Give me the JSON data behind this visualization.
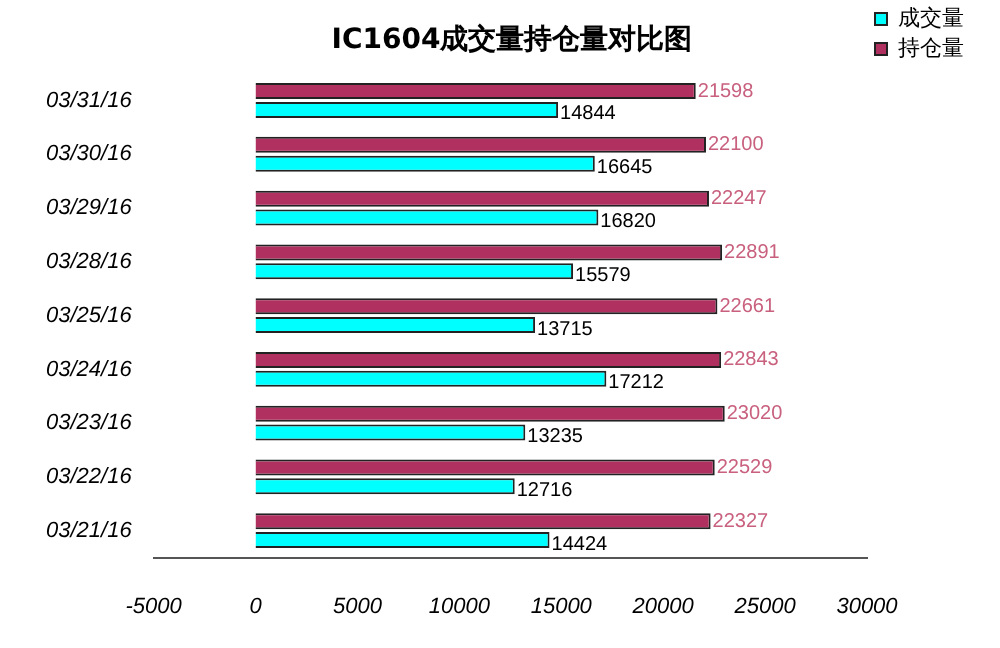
{
  "chart_data": {
    "type": "bar",
    "orientation": "horizontal",
    "title": "IC1604成交量持仓量对比图",
    "categories": [
      "03/31/16",
      "03/30/16",
      "03/29/16",
      "03/28/16",
      "03/25/16",
      "03/24/16",
      "03/23/16",
      "03/22/16",
      "03/21/16"
    ],
    "series": [
      {
        "name": "成交量",
        "color": "#00ffff",
        "values": [
          14844,
          16645,
          16820,
          15579,
          13715,
          17212,
          13235,
          12716,
          14424
        ]
      },
      {
        "name": "持仓量",
        "color": "#b03060",
        "values": [
          21598,
          22100,
          22247,
          22891,
          22661,
          22843,
          23020,
          22529,
          22327
        ]
      }
    ],
    "xlim": [
      -5000,
      30000
    ],
    "xticks": [
      -5000,
      0,
      5000,
      10000,
      15000,
      20000,
      25000,
      30000
    ],
    "grid": false,
    "legend": "top right",
    "data_labels": true
  }
}
